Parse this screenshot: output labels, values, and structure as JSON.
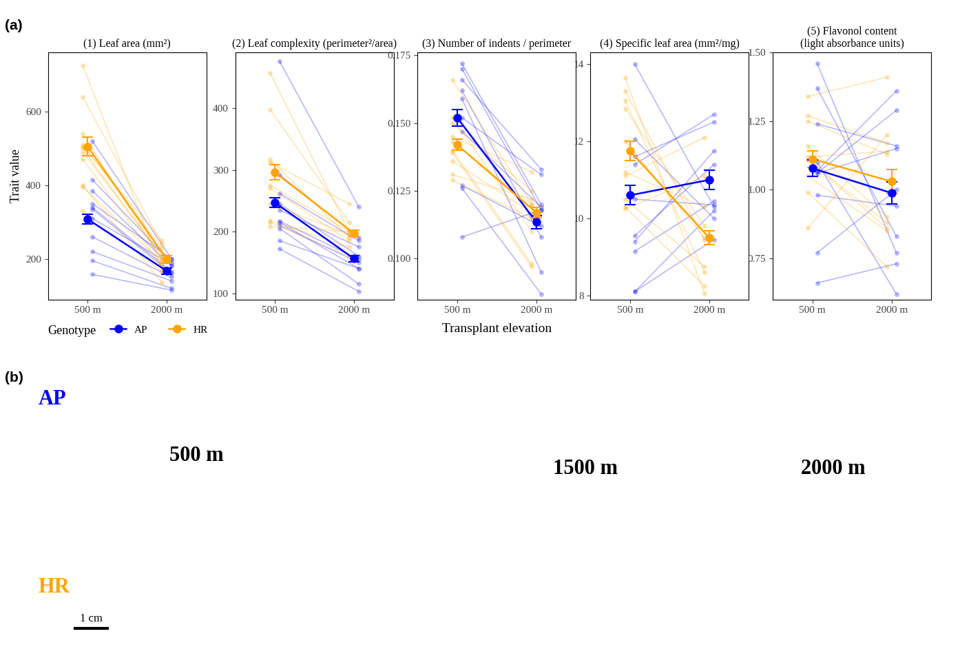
{
  "panel_label_a": "(a)",
  "x_label": "Transplant elevation",
  "legend_title": "Genotype",
  "legend": "lower left",
  "chart_data": [
    {
      "type": "line",
      "title": "(1) Leaf area (mm²)",
      "ylabel": "Trait value",
      "categories": [
        "500 m",
        "2000 m"
      ],
      "ylim": [
        90,
        760
      ],
      "yticks": [
        200,
        400,
        600
      ],
      "series": [
        {
          "name": "AP",
          "color": "#0000ff",
          "values": [
            308,
            167
          ],
          "errors": [
            14,
            8
          ],
          "individuals": [
            [
              520,
              200
            ],
            [
              415,
              190
            ],
            [
              385,
              180
            ],
            [
              350,
              200
            ],
            [
              340,
              165
            ],
            [
              335,
              160
            ],
            [
              260,
              150
            ],
            [
              220,
              140
            ],
            [
              195,
              120
            ],
            [
              158,
              115
            ],
            [
              310,
              185
            ]
          ]
        },
        {
          "name": "HR",
          "color": "#ffa500",
          "values": [
            505,
            199
          ],
          "errors": [
            25,
            10
          ],
          "individuals": [
            [
              725,
              170
            ],
            [
              640,
              240
            ],
            [
              540,
              195
            ],
            [
              510,
              230
            ],
            [
              500,
              200
            ],
            [
              490,
              210
            ],
            [
              470,
              180
            ],
            [
              400,
              135
            ],
            [
              395,
              190
            ],
            [
              330,
              165
            ],
            [
              505,
              250
            ]
          ]
        }
      ]
    },
    {
      "type": "line",
      "title": "(2) Leaf complexity (perimeter²/area)",
      "categories": [
        "500 m",
        "2000 m"
      ],
      "ylim": [
        90,
        490
      ],
      "yticks": [
        100,
        200,
        300,
        400
      ],
      "series": [
        {
          "name": "AP",
          "color": "#0000ff",
          "values": [
            247,
            156
          ],
          "errors": [
            8,
            5
          ],
          "individuals": [
            [
              476,
              240
            ],
            [
              292,
              190
            ],
            [
              262,
              185
            ],
            [
              235,
              175
            ],
            [
              217,
              155
            ],
            [
              215,
              140
            ],
            [
              210,
              150
            ],
            [
              205,
              115
            ],
            [
              185,
              140
            ],
            [
              172,
              103
            ],
            [
              245,
              160
            ]
          ]
        },
        {
          "name": "HR",
          "color": "#ffa500",
          "values": [
            296,
            197
          ],
          "errors": [
            12,
            5
          ],
          "individuals": [
            [
              457,
              200
            ],
            [
              398,
              215
            ],
            [
              317,
              190
            ],
            [
              312,
              245
            ],
            [
              275,
              200
            ],
            [
              270,
              185
            ],
            [
              245,
              195
            ],
            [
              218,
              175
            ],
            [
              215,
              160
            ],
            [
              208,
              200
            ]
          ]
        }
      ]
    },
    {
      "type": "line",
      "title": "(3) Number of indents / perimeter",
      "categories": [
        "500 m",
        "2000 m"
      ],
      "ylim": [
        0.085,
        0.176
      ],
      "yticks": [
        {
          "value": 0.1,
          "label": "0.100"
        },
        0.125,
        {
          "value": 0.15,
          "label": "0.150"
        },
        0.175
      ],
      "series": [
        {
          "name": "AP",
          "color": "#0000ff",
          "values": [
            0.152,
            0.1135
          ],
          "errors": [
            0.003,
            0.0025
          ],
          "individuals": [
            [
              0.172,
              0.12
            ],
            [
              0.17,
              0.118
            ],
            [
              0.166,
              0.133
            ],
            [
              0.162,
              0.108
            ],
            [
              0.159,
              0.095
            ],
            [
              0.152,
              0.131
            ],
            [
              0.147,
              0.119
            ],
            [
              0.127,
              0.112
            ],
            [
              0.126,
              0.087
            ],
            [
              0.108,
              0.118
            ]
          ]
        },
        {
          "name": "HR",
          "color": "#ffa500",
          "values": [
            0.142,
            0.117
          ],
          "errors": [
            0.002,
            0.002
          ],
          "individuals": [
            [
              0.166,
              0.12
            ],
            [
              0.152,
              0.11
            ],
            [
              0.15,
              0.125
            ],
            [
              0.145,
              0.132
            ],
            [
              0.143,
              0.12
            ],
            [
              0.14,
              0.098
            ],
            [
              0.139,
              0.097
            ],
            [
              0.136,
              0.117
            ],
            [
              0.131,
              0.122
            ],
            [
              0.129,
              0.115
            ]
          ]
        }
      ]
    },
    {
      "type": "line",
      "title": "(4) Specific leaf area (mm²/mg)",
      "categories": [
        "500 m",
        "2000 m"
      ],
      "ylim": [
        7.9,
        14.3
      ],
      "yticks": [
        8,
        10,
        12,
        14
      ],
      "series": [
        {
          "name": "AP",
          "color": "#0000ff",
          "values": [
            10.6,
            11.0
          ],
          "errors": [
            0.25,
            0.25
          ],
          "individuals": [
            [
              14.0,
              10.3
            ],
            [
              12.05,
              10.0
            ],
            [
              11.6,
              12.5
            ],
            [
              11.4,
              12.7
            ],
            [
              9.55,
              11.4
            ],
            [
              9.4,
              11.75
            ],
            [
              9.15,
              10.45
            ],
            [
              8.1,
              10.2
            ],
            [
              8.1,
              9.45
            ],
            [
              10.5,
              10.35
            ]
          ]
        },
        {
          "name": "HR",
          "color": "#ffa500",
          "values": [
            11.75,
            9.5
          ],
          "errors": [
            0.25,
            0.18
          ],
          "individuals": [
            [
              13.65,
              8.05
            ],
            [
              13.3,
              9.45
            ],
            [
              13.05,
              8.6
            ],
            [
              12.85,
              9.8
            ],
            [
              11.2,
              10.3
            ],
            [
              11.1,
              12.1
            ],
            [
              10.5,
              8.75
            ],
            [
              10.3,
              8.25
            ],
            [
              10.25,
              11.1
            ],
            [
              12.0,
              9.5
            ]
          ]
        }
      ]
    },
    {
      "type": "line",
      "title": "(5) Flavonol content\n(light absorbance units)",
      "categories": [
        "500 m",
        "2000 m"
      ],
      "ylim": [
        0.6,
        1.5
      ],
      "yticks": [
        0.75,
        {
          "value": 1.0,
          "label": "1.00"
        },
        1.25,
        {
          "value": 1.5,
          "label": "1.50"
        }
      ],
      "series": [
        {
          "name": "AP",
          "color": "#0000ff",
          "values": [
            1.078,
            0.988
          ],
          "errors": [
            0.03,
            0.04
          ],
          "individuals": [
            [
              1.46,
              0.77
            ],
            [
              1.37,
              0.83
            ],
            [
              1.24,
              1.16
            ],
            [
              1.07,
              1.36
            ],
            [
              1.06,
              1.29
            ],
            [
              1.06,
              1.15
            ],
            [
              0.98,
              0.94
            ],
            [
              0.77,
              1.0
            ],
            [
              0.66,
              0.73
            ],
            [
              1.1,
              0.62
            ]
          ]
        },
        {
          "name": "HR",
          "color": "#ffa500",
          "values": [
            1.112,
            1.03
          ],
          "errors": [
            0.03,
            0.045
          ],
          "individuals": [
            [
              1.34,
              1.41
            ],
            [
              1.27,
              1.17
            ],
            [
              1.25,
              1.13
            ],
            [
              1.16,
              0.9
            ],
            [
              1.12,
              1.14
            ],
            [
              1.11,
              0.86
            ],
            [
              1.11,
              0.88
            ],
            [
              1.05,
              0.85
            ],
            [
              0.99,
              0.72
            ],
            [
              0.86,
              1.2
            ]
          ]
        }
      ]
    }
  ],
  "panel_b": {
    "label": "(b)",
    "rows": [
      {
        "text": "AP",
        "color": "#0000ff"
      },
      {
        "text": "HR",
        "color": "#ffa500"
      }
    ],
    "elevations": [
      "500 m",
      "1500 m",
      "2000 m"
    ],
    "scale_bar": "1 cm"
  }
}
